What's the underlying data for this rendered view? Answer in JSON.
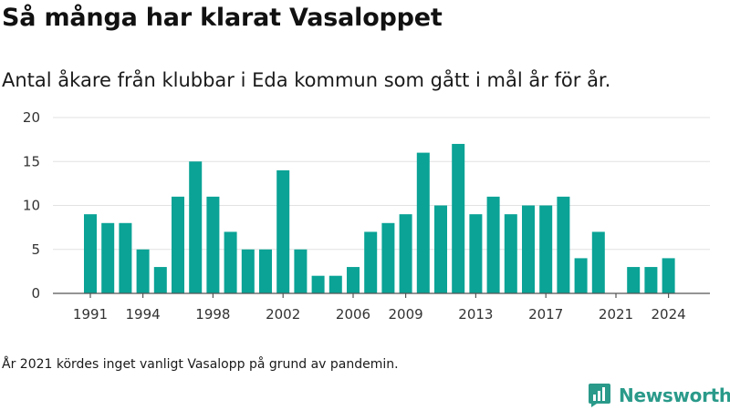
{
  "title": "Så många har klarat Vasaloppet",
  "subtitle": "Antal åkare från klubbar i Eda kommun som gått i mål år för år.",
  "footnote": "År 2021 kördes inget vanligt Vasalopp på grund av pandemin.",
  "brand": {
    "name": "Newsworthy",
    "icon": "newsworthy-logo-icon",
    "color": "#2a9a8a"
  },
  "chart_data": {
    "type": "bar",
    "categories": [
      1991,
      1992,
      1993,
      1994,
      1995,
      1996,
      1997,
      1998,
      1999,
      2000,
      2001,
      2002,
      2003,
      2004,
      2005,
      2006,
      2007,
      2008,
      2009,
      2010,
      2011,
      2012,
      2013,
      2014,
      2015,
      2016,
      2017,
      2018,
      2019,
      2020,
      2021,
      2022,
      2023,
      2024
    ],
    "values": [
      9,
      8,
      8,
      5,
      3,
      11,
      15,
      11,
      7,
      5,
      5,
      14,
      5,
      2,
      2,
      3,
      7,
      8,
      9,
      16,
      10,
      17,
      9,
      11,
      9,
      10,
      10,
      11,
      4,
      7,
      0,
      3,
      3,
      4
    ],
    "x_tick_labels": [
      "1991",
      "1994",
      "1998",
      "2002",
      "2006",
      "2009",
      "2013",
      "2017",
      "2021",
      "2024"
    ],
    "y_ticks": [
      0,
      5,
      10,
      15,
      20
    ],
    "ylim": [
      0,
      20
    ],
    "grid": true,
    "bar_color": "#0aa396",
    "gridline_color": "#e2e2e2",
    "axis_color": "#555555"
  }
}
